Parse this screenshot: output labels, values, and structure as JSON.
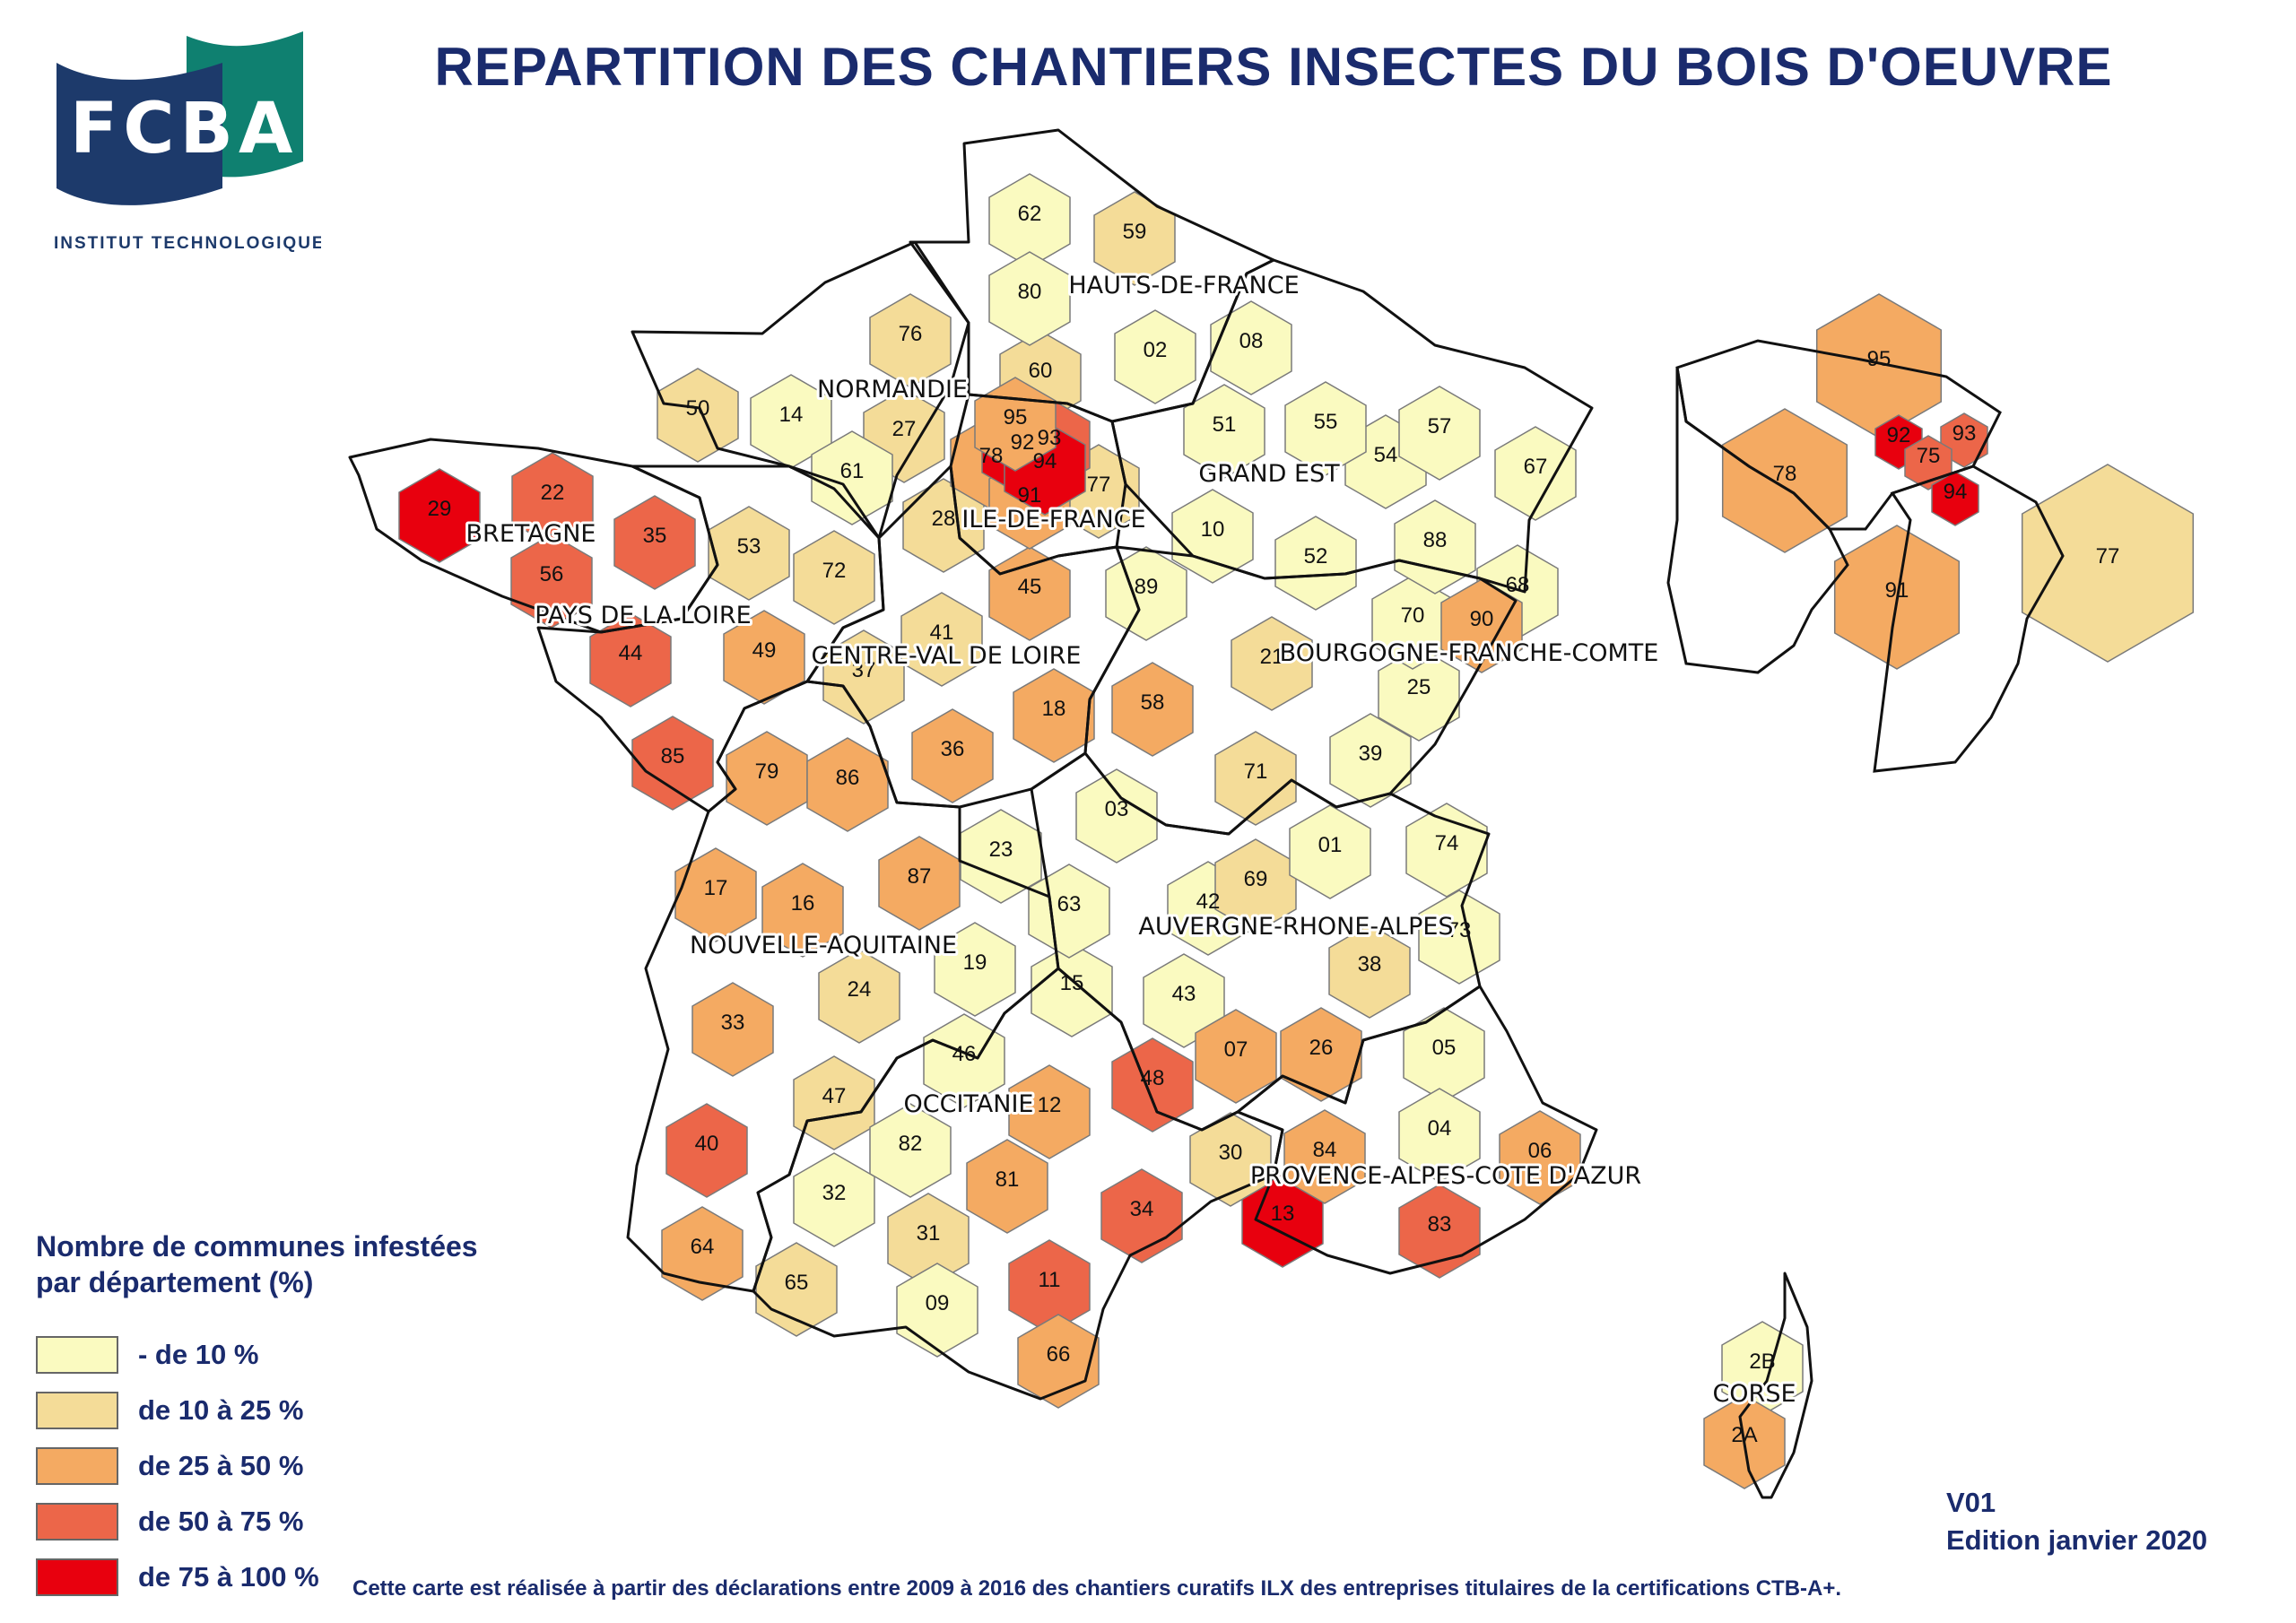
{
  "header": {
    "title": "REPARTITION DES CHANTIERS INSECTES DU BOIS D'OEUVRE",
    "logo_text": "FCBA",
    "logo_subtitle": "INSTITUT TECHNOLOGIQUE"
  },
  "colors": {
    "class_1": "#fafac0",
    "class_2": "#f4dc98",
    "class_3": "#f4aa62",
    "class_4": "#ec6649",
    "class_5": "#e8000e",
    "logo_navy": "#1d3a6b",
    "logo_green": "#0f8070",
    "text_navy": "#1a2b6d"
  },
  "legend": {
    "title_line1": "Nombre de communes infestées",
    "title_line2": "par département (%)",
    "items": [
      {
        "label": "- de 10 %",
        "class": 1
      },
      {
        "label": "de 10 à 25 %",
        "class": 2
      },
      {
        "label": "de 25 à 50 %",
        "class": 3
      },
      {
        "label": "de 50 à 75 %",
        "class": 4
      },
      {
        "label": "de 75 à 100 %",
        "class": 5
      }
    ]
  },
  "regions": [
    "HAUTS-DE-FRANCE",
    "NORMANDIE",
    "ILE-DE-FRANCE",
    "GRAND EST",
    "BRETAGNE",
    "PAYS DE LA LOIRE",
    "CENTRE-VAL DE LOIRE",
    "BOURGOGNE-FRANCHE-COMTE",
    "NOUVELLE-AQUITAINE",
    "AUVERGNE-RHONE-ALPES",
    "OCCITANIE",
    "PROVENCE-ALPES-COTE D'AZUR",
    "CORSE"
  ],
  "departments": {
    "01": 1,
    "02": 1,
    "03": 1,
    "04": 1,
    "05": 1,
    "06": 3,
    "07": 3,
    "08": 1,
    "09": 1,
    "10": 1,
    "11": 4,
    "12": 3,
    "13": 5,
    "14": 1,
    "15": 1,
    "16": 3,
    "17": 3,
    "18": 3,
    "19": 1,
    "21": 2,
    "22": 4,
    "23": 1,
    "24": 2,
    "25": 1,
    "26": 3,
    "27": 2,
    "28": 2,
    "29": 5,
    "2A": 3,
    "2B": 1,
    "30": 2,
    "31": 2,
    "32": 1,
    "33": 3,
    "34": 4,
    "35": 4,
    "36": 3,
    "37": 2,
    "38": 2,
    "39": 1,
    "40": 4,
    "41": 2,
    "42": 1,
    "43": 1,
    "44": 4,
    "45": 3,
    "46": 1,
    "47": 2,
    "48": 4,
    "49": 3,
    "50": 2,
    "51": 1,
    "52": 1,
    "53": 2,
    "54": 1,
    "55": 1,
    "56": 4,
    "57": 1,
    "58": 3,
    "59": 2,
    "60": 2,
    "61": 1,
    "62": 1,
    "63": 1,
    "64": 3,
    "65": 2,
    "66": 3,
    "67": 1,
    "68": 1,
    "69": 2,
    "70": 1,
    "71": 2,
    "72": 2,
    "73": 1,
    "74": 1,
    "75": 4,
    "76": 2,
    "77": 2,
    "78": 3,
    "79": 3,
    "80": 1,
    "81": 3,
    "82": 1,
    "83": 4,
    "84": 3,
    "85": 4,
    "86": 3,
    "87": 3,
    "88": 1,
    "89": 1,
    "90": 3,
    "91": 3,
    "92": 5,
    "93": 4,
    "94": 5,
    "95": 3
  },
  "version": {
    "line1": "V01",
    "line2": "Edition janvier 2020"
  },
  "footnote": "Cette carte est réalisée à partir des déclarations entre 2009 à 2016 des chantiers curatifs ILX des entreprises titulaires de la certifications CTB-A+."
}
